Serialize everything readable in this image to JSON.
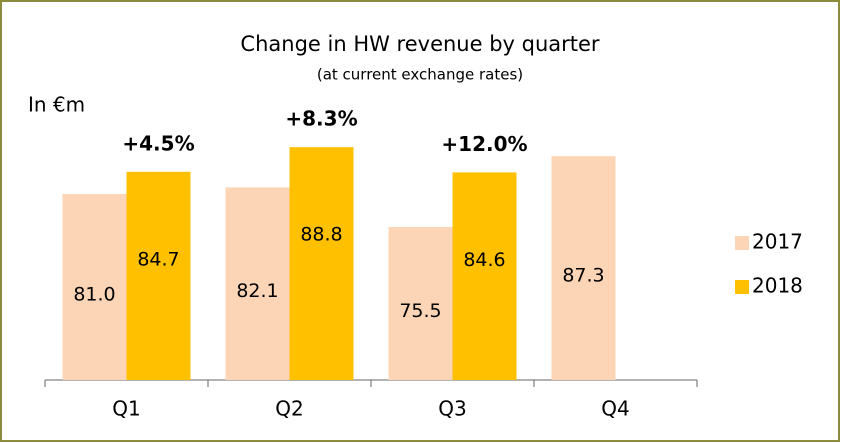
{
  "chart_data": {
    "type": "bar",
    "title": "Change in HW revenue by quarter",
    "subtitle": "(at current exchange rates)",
    "unit_label": "In €m",
    "categories": [
      "Q1",
      "Q2",
      "Q3",
      "Q4"
    ],
    "series": [
      {
        "name": "2017",
        "color": "#fbd5b5",
        "values": [
          81.0,
          82.1,
          75.5,
          87.3
        ],
        "value_labels": [
          "81.0",
          "82.1",
          "75.5",
          "87.3"
        ]
      },
      {
        "name": "2018",
        "color": "#ffc000",
        "values": [
          84.7,
          88.8,
          84.6,
          null
        ],
        "value_labels": [
          "84.7",
          "88.8",
          "84.6",
          null
        ]
      }
    ],
    "annotations": [
      "+4.5%",
      "+8.3%",
      "+12.0%"
    ],
    "ylim": [
      50,
      95
    ],
    "legend": "right"
  }
}
